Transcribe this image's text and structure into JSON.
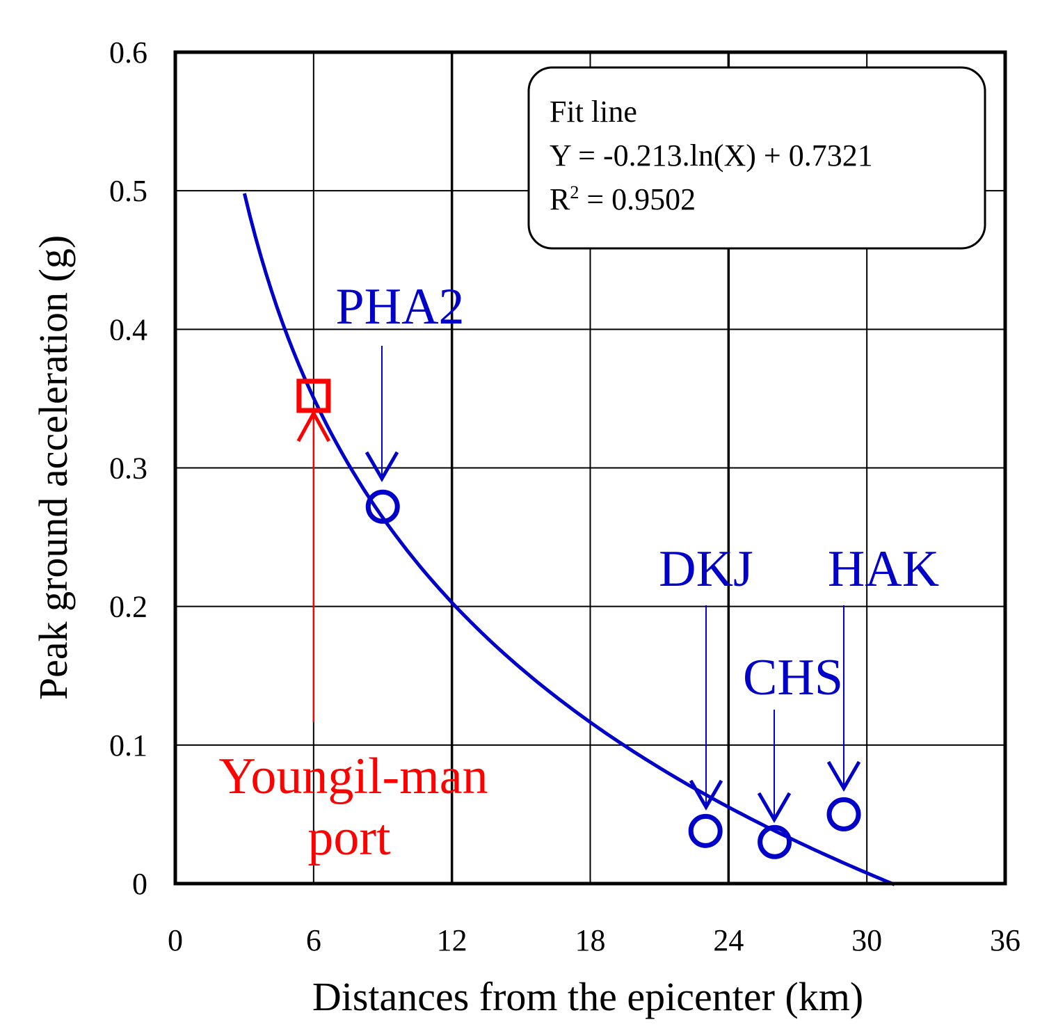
{
  "chart_data": {
    "type": "scatter",
    "title": "",
    "xlabel": "Distances from the epicenter (km)",
    "ylabel": "Peak ground acceleration (g)",
    "xlim": [
      0,
      36
    ],
    "ylim": [
      0,
      0.6
    ],
    "x_ticks": [
      "0",
      "6",
      "12",
      "18",
      "24",
      "30",
      "36"
    ],
    "y_ticks": [
      "0",
      "0.1",
      "0.2",
      "0.3",
      "0.4",
      "0.5",
      "0.6"
    ],
    "grid": true,
    "fit": {
      "heading": "Fit line",
      "equation": "Y = -0.213.ln(X) + 0.7321",
      "r2_label": "R",
      "r2_sup": "2",
      "r2_value": " = 0.9502",
      "a": -0.213,
      "b": 0.7321,
      "x_range": [
        3,
        31.2
      ],
      "color": "#0000c8"
    },
    "stations": [
      {
        "name": "PHA2",
        "x": 9,
        "y": 0.272,
        "color": "#0000c8"
      },
      {
        "name": "DKJ",
        "x": 23,
        "y": 0.038,
        "color": "#0000c8"
      },
      {
        "name": "CHS",
        "x": 26,
        "y": 0.03,
        "color": "#0000c8"
      },
      {
        "name": "HAK",
        "x": 29,
        "y": 0.05,
        "color": "#0000c8"
      }
    ],
    "site": {
      "line1": "Youngil-man",
      "line2": "port",
      "x": 6,
      "y": 0.352,
      "color": "#ff0000"
    }
  }
}
